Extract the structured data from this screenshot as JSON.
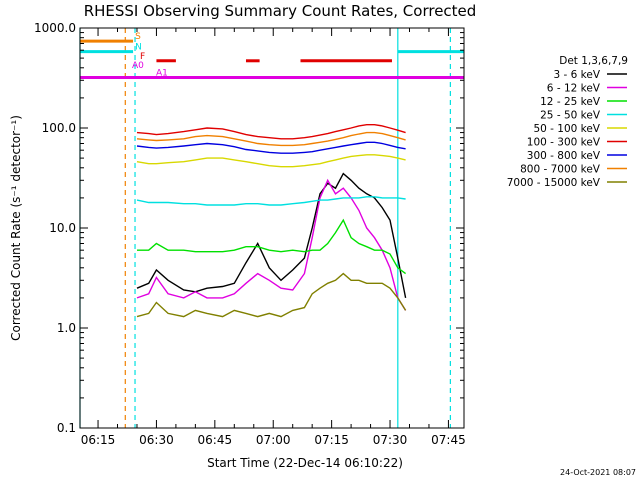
{
  "chart_data": {
    "type": "line",
    "title": "RHESSI Observing Summary Count Rates, Corrected",
    "xlabel": "Start Time (22-Dec-14 06:10:22)",
    "ylabel": "Corrected Count Rate (s⁻¹ detector⁻¹)",
    "y_scale": "log",
    "ylim": [
      0.1,
      1000.0
    ],
    "xlim": [
      "06:10:22",
      "07:49:00"
    ],
    "y_ticks": [
      "0.1",
      "1.0",
      "10.0",
      "100.0",
      "1000.0"
    ],
    "x_ticks": [
      "06:15",
      "06:30",
      "06:45",
      "07:00",
      "07:15",
      "07:30",
      "07:45"
    ],
    "legend_title": "Det 1,3,6,7,9",
    "legend_position": "right",
    "series": [
      {
        "name": "3 - 6 keV",
        "color": "#000000",
        "points": [
          [
            "06:25",
            2.5
          ],
          [
            "06:28",
            2.8
          ],
          [
            "06:30",
            3.8
          ],
          [
            "06:33",
            3.0
          ],
          [
            "06:37",
            2.4
          ],
          [
            "06:40",
            2.3
          ],
          [
            "06:43",
            2.5
          ],
          [
            "06:47",
            2.6
          ],
          [
            "06:50",
            2.8
          ],
          [
            "06:53",
            4.5
          ],
          [
            "06:56",
            7.0
          ],
          [
            "06:59",
            4.0
          ],
          [
            "07:02",
            3.0
          ],
          [
            "07:05",
            3.8
          ],
          [
            "07:08",
            5.0
          ],
          [
            "07:10",
            10.0
          ],
          [
            "07:12",
            22.0
          ],
          [
            "07:14",
            28.0
          ],
          [
            "07:16",
            25.0
          ],
          [
            "07:18",
            35.0
          ],
          [
            "07:20",
            30.0
          ],
          [
            "07:22",
            25.0
          ],
          [
            "07:24",
            22.0
          ],
          [
            "07:26",
            20.0
          ],
          [
            "07:28",
            16.0
          ],
          [
            "07:30",
            12.0
          ],
          [
            "07:32",
            5.0
          ],
          [
            "07:34",
            2.0
          ]
        ]
      },
      {
        "name": "6 - 12 keV",
        "color": "#e000e0",
        "points": [
          [
            "06:25",
            2.0
          ],
          [
            "06:28",
            2.2
          ],
          [
            "06:30",
            3.2
          ],
          [
            "06:33",
            2.2
          ],
          [
            "06:37",
            2.0
          ],
          [
            "06:40",
            2.3
          ],
          [
            "06:43",
            2.0
          ],
          [
            "06:47",
            2.0
          ],
          [
            "06:50",
            2.2
          ],
          [
            "06:53",
            2.8
          ],
          [
            "06:56",
            3.5
          ],
          [
            "06:59",
            3.0
          ],
          [
            "07:02",
            2.5
          ],
          [
            "07:05",
            2.4
          ],
          [
            "07:08",
            3.5
          ],
          [
            "07:10",
            8.0
          ],
          [
            "07:12",
            20.0
          ],
          [
            "07:14",
            30.0
          ],
          [
            "07:16",
            22.0
          ],
          [
            "07:18",
            25.0
          ],
          [
            "07:20",
            20.0
          ],
          [
            "07:22",
            15.0
          ],
          [
            "07:24",
            10.0
          ],
          [
            "07:26",
            8.0
          ],
          [
            "07:28",
            6.0
          ],
          [
            "07:30",
            4.0
          ],
          [
            "07:32",
            2.0
          ],
          [
            "07:34",
            1.5
          ]
        ]
      },
      {
        "name": "12 - 25 keV",
        "color": "#00e000",
        "points": [
          [
            "06:25",
            6.0
          ],
          [
            "06:28",
            6.0
          ],
          [
            "06:30",
            7.0
          ],
          [
            "06:33",
            6.0
          ],
          [
            "06:37",
            6.0
          ],
          [
            "06:40",
            5.8
          ],
          [
            "06:43",
            5.8
          ],
          [
            "06:47",
            5.8
          ],
          [
            "06:50",
            6.0
          ],
          [
            "06:53",
            6.5
          ],
          [
            "06:56",
            6.5
          ],
          [
            "06:59",
            6.0
          ],
          [
            "07:02",
            5.8
          ],
          [
            "07:05",
            6.0
          ],
          [
            "07:08",
            5.8
          ],
          [
            "07:10",
            6.0
          ],
          [
            "07:12",
            6.0
          ],
          [
            "07:14",
            7.0
          ],
          [
            "07:16",
            9.0
          ],
          [
            "07:18",
            12.0
          ],
          [
            "07:20",
            8.0
          ],
          [
            "07:22",
            7.0
          ],
          [
            "07:24",
            6.5
          ],
          [
            "07:26",
            6.0
          ],
          [
            "07:28",
            6.0
          ],
          [
            "07:30",
            5.5
          ],
          [
            "07:32",
            4.0
          ],
          [
            "07:34",
            3.5
          ]
        ]
      },
      {
        "name": "25 - 50 keV",
        "color": "#00e0e0",
        "points": [
          [
            "06:25",
            19.0
          ],
          [
            "06:28",
            18.0
          ],
          [
            "06:30",
            18.0
          ],
          [
            "06:33",
            18.0
          ],
          [
            "06:37",
            17.5
          ],
          [
            "06:40",
            17.5
          ],
          [
            "06:43",
            17.0
          ],
          [
            "06:47",
            17.0
          ],
          [
            "06:50",
            17.0
          ],
          [
            "06:53",
            17.5
          ],
          [
            "06:56",
            17.5
          ],
          [
            "06:59",
            17.0
          ],
          [
            "07:02",
            17.0
          ],
          [
            "07:05",
            17.5
          ],
          [
            "07:08",
            18.0
          ],
          [
            "07:10",
            18.5
          ],
          [
            "07:12",
            19.0
          ],
          [
            "07:14",
            19.0
          ],
          [
            "07:16",
            19.5
          ],
          [
            "07:18",
            20.0
          ],
          [
            "07:20",
            20.0
          ],
          [
            "07:22",
            20.0
          ],
          [
            "07:24",
            20.5
          ],
          [
            "07:26",
            20.5
          ],
          [
            "07:28",
            20.0
          ],
          [
            "07:30",
            20.0
          ],
          [
            "07:32",
            20.0
          ],
          [
            "07:34",
            19.5
          ]
        ]
      },
      {
        "name": "50 - 100 keV",
        "color": "#d8d800",
        "points": [
          [
            "06:25",
            46.0
          ],
          [
            "06:28",
            44.0
          ],
          [
            "06:30",
            44.0
          ],
          [
            "06:33",
            45.0
          ],
          [
            "06:37",
            46.0
          ],
          [
            "06:40",
            48.0
          ],
          [
            "06:43",
            50.0
          ],
          [
            "06:47",
            50.0
          ],
          [
            "06:50",
            48.0
          ],
          [
            "06:53",
            46.0
          ],
          [
            "06:56",
            44.0
          ],
          [
            "06:59",
            42.0
          ],
          [
            "07:02",
            41.0
          ],
          [
            "07:05",
            41.0
          ],
          [
            "07:08",
            42.0
          ],
          [
            "07:10",
            43.0
          ],
          [
            "07:12",
            44.0
          ],
          [
            "07:14",
            46.0
          ],
          [
            "07:16",
            48.0
          ],
          [
            "07:18",
            50.0
          ],
          [
            "07:20",
            52.0
          ],
          [
            "07:22",
            53.0
          ],
          [
            "07:24",
            54.0
          ],
          [
            "07:26",
            54.0
          ],
          [
            "07:28",
            53.0
          ],
          [
            "07:30",
            52.0
          ],
          [
            "07:32",
            50.0
          ],
          [
            "07:34",
            48.0
          ]
        ]
      },
      {
        "name": "100 - 300 keV",
        "color": "#e00000",
        "points": [
          [
            "06:25",
            90.0
          ],
          [
            "06:28",
            88.0
          ],
          [
            "06:30",
            86.0
          ],
          [
            "06:33",
            88.0
          ],
          [
            "06:37",
            92.0
          ],
          [
            "06:40",
            96.0
          ],
          [
            "06:43",
            100.0
          ],
          [
            "06:47",
            98.0
          ],
          [
            "06:50",
            92.0
          ],
          [
            "06:53",
            86.0
          ],
          [
            "06:56",
            82.0
          ],
          [
            "06:59",
            80.0
          ],
          [
            "07:02",
            78.0
          ],
          [
            "07:05",
            78.0
          ],
          [
            "07:08",
            80.0
          ],
          [
            "07:10",
            82.0
          ],
          [
            "07:12",
            85.0
          ],
          [
            "07:14",
            88.0
          ],
          [
            "07:16",
            92.0
          ],
          [
            "07:18",
            96.0
          ],
          [
            "07:20",
            100.0
          ],
          [
            "07:22",
            105.0
          ],
          [
            "07:24",
            108.0
          ],
          [
            "07:26",
            108.0
          ],
          [
            "07:28",
            105.0
          ],
          [
            "07:30",
            100.0
          ],
          [
            "07:32",
            95.0
          ],
          [
            "07:34",
            90.0
          ]
        ]
      },
      {
        "name": "300 - 800 keV",
        "color": "#0000e0",
        "points": [
          [
            "06:25",
            66.0
          ],
          [
            "06:28",
            64.0
          ],
          [
            "06:30",
            63.0
          ],
          [
            "06:33",
            64.0
          ],
          [
            "06:37",
            66.0
          ],
          [
            "06:40",
            68.0
          ],
          [
            "06:43",
            70.0
          ],
          [
            "06:47",
            68.0
          ],
          [
            "06:50",
            65.0
          ],
          [
            "06:53",
            61.0
          ],
          [
            "06:56",
            59.0
          ],
          [
            "06:59",
            57.0
          ],
          [
            "07:02",
            56.0
          ],
          [
            "07:05",
            56.0
          ],
          [
            "07:08",
            57.0
          ],
          [
            "07:10",
            58.0
          ],
          [
            "07:12",
            60.0
          ],
          [
            "07:14",
            62.0
          ],
          [
            "07:16",
            64.0
          ],
          [
            "07:18",
            66.0
          ],
          [
            "07:20",
            68.0
          ],
          [
            "07:22",
            70.0
          ],
          [
            "07:24",
            72.0
          ],
          [
            "07:26",
            72.0
          ],
          [
            "07:28",
            70.0
          ],
          [
            "07:30",
            67.0
          ],
          [
            "07:32",
            64.0
          ],
          [
            "07:34",
            62.0
          ]
        ]
      },
      {
        "name": "800 - 7000 keV",
        "color": "#f08000",
        "points": [
          [
            "06:25",
            78.0
          ],
          [
            "06:28",
            76.0
          ],
          [
            "06:30",
            75.0
          ],
          [
            "06:33",
            76.0
          ],
          [
            "06:37",
            78.0
          ],
          [
            "06:40",
            82.0
          ],
          [
            "06:43",
            84.0
          ],
          [
            "06:47",
            82.0
          ],
          [
            "06:50",
            78.0
          ],
          [
            "06:53",
            74.0
          ],
          [
            "06:56",
            70.0
          ],
          [
            "06:59",
            68.0
          ],
          [
            "07:02",
            67.0
          ],
          [
            "07:05",
            67.0
          ],
          [
            "07:08",
            68.0
          ],
          [
            "07:10",
            70.0
          ],
          [
            "07:12",
            72.0
          ],
          [
            "07:14",
            74.0
          ],
          [
            "07:16",
            77.0
          ],
          [
            "07:18",
            80.0
          ],
          [
            "07:20",
            84.0
          ],
          [
            "07:22",
            87.0
          ],
          [
            "07:24",
            90.0
          ],
          [
            "07:26",
            90.0
          ],
          [
            "07:28",
            88.0
          ],
          [
            "07:30",
            84.0
          ],
          [
            "07:32",
            80.0
          ],
          [
            "07:34",
            76.0
          ]
        ]
      },
      {
        "name": "7000 - 15000 keV",
        "color": "#808000",
        "points": [
          [
            "06:25",
            1.3
          ],
          [
            "06:28",
            1.4
          ],
          [
            "06:30",
            1.8
          ],
          [
            "06:33",
            1.4
          ],
          [
            "06:37",
            1.3
          ],
          [
            "06:40",
            1.5
          ],
          [
            "06:43",
            1.4
          ],
          [
            "06:47",
            1.3
          ],
          [
            "06:50",
            1.5
          ],
          [
            "06:53",
            1.4
          ],
          [
            "06:56",
            1.3
          ],
          [
            "06:59",
            1.4
          ],
          [
            "07:02",
            1.3
          ],
          [
            "07:05",
            1.5
          ],
          [
            "07:08",
            1.6
          ],
          [
            "07:10",
            2.2
          ],
          [
            "07:12",
            2.5
          ],
          [
            "07:14",
            2.8
          ],
          [
            "07:16",
            3.0
          ],
          [
            "07:18",
            3.5
          ],
          [
            "07:20",
            3.0
          ],
          [
            "07:22",
            3.0
          ],
          [
            "07:24",
            2.8
          ],
          [
            "07:26",
            2.8
          ],
          [
            "07:28",
            2.8
          ],
          [
            "07:30",
            2.5
          ],
          [
            "07:32",
            2.0
          ],
          [
            "07:34",
            1.5
          ]
        ]
      }
    ],
    "flags": [
      {
        "label": "S",
        "color": "#f08000",
        "segments": [
          [
            "06:10:22",
            "06:24:00"
          ]
        ],
        "level": 740.0
      },
      {
        "label": "N",
        "color": "#00e0e0",
        "segments": [
          [
            "06:10:22",
            "06:24:00"
          ],
          [
            "07:32:00",
            "07:49:00"
          ]
        ],
        "level": 580.0
      },
      {
        "label": "F",
        "color": "#e00000",
        "segments": [
          [
            "06:30:00",
            "06:35:00"
          ],
          [
            "06:53:00",
            "06:56:30"
          ],
          [
            "07:07:00",
            "07:30:30"
          ]
        ],
        "level": 470.0
      },
      {
        "label": "A0",
        "color": "#e000e0",
        "segments": [],
        "level": 380.0
      },
      {
        "label": "A1",
        "color": "#e000e0",
        "segments": [
          [
            "06:10:22",
            "07:49:00"
          ]
        ],
        "level": 320.0
      }
    ],
    "vertical_lines": [
      {
        "time": "06:10:22",
        "color": "#00e0e0",
        "style": "solid"
      },
      {
        "time": "06:22:00",
        "color": "#f08000",
        "style": "dashed"
      },
      {
        "time": "06:24:30",
        "color": "#00e0e0",
        "style": "dashed"
      },
      {
        "time": "07:32:00",
        "color": "#00e0e0",
        "style": "solid"
      },
      {
        "time": "07:45:30",
        "color": "#00e0e0",
        "style": "dashed"
      }
    ]
  },
  "footer": {
    "timestamp": "24-Oct-2021 08:07"
  }
}
